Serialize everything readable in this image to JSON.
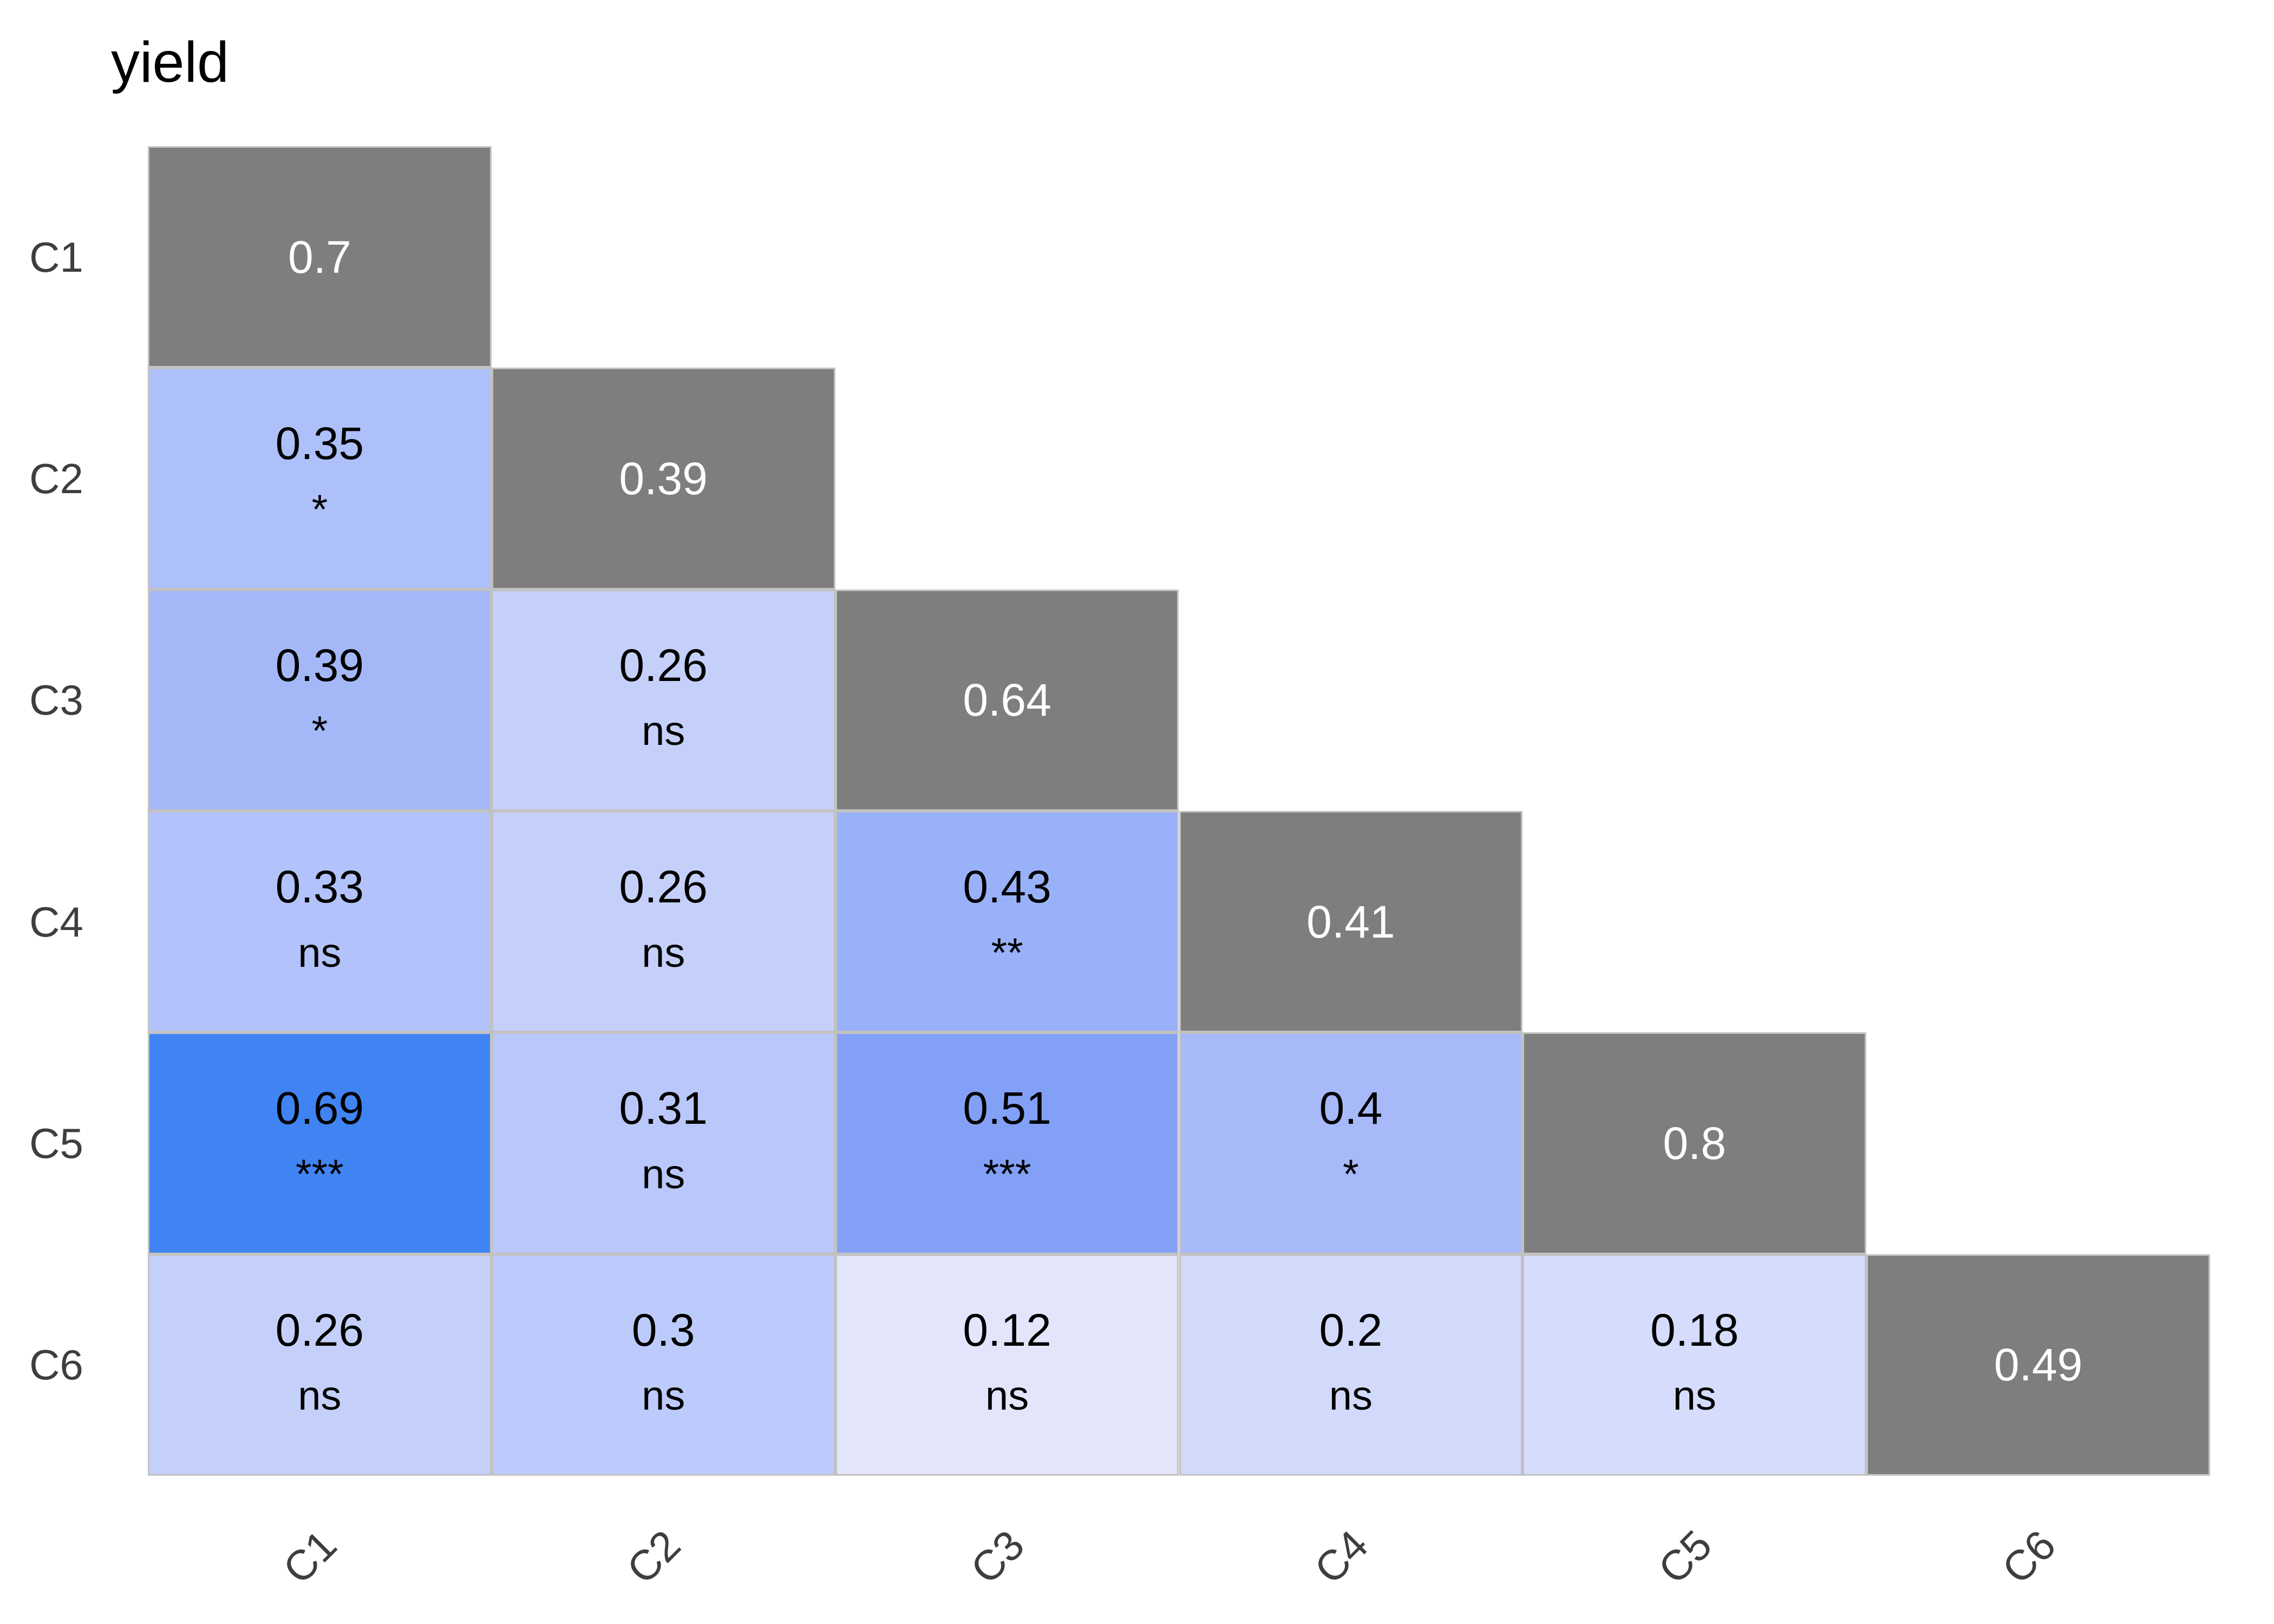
{
  "title": "yield",
  "style": {
    "background": "#ffffff",
    "title_color": "#000000",
    "axis_label_color": "#3e3e3e",
    "grid_line_color": "#c2c2c2",
    "diagonal_cell_color": "#7e7e7e",
    "diagonal_text_color": "#ffffff",
    "cell_text_color": "#000000",
    "max_blue": "#4084f3"
  },
  "chart_data": {
    "type": "heatmap",
    "title": "yield",
    "subtitle": "",
    "rows": [
      "C1",
      "C2",
      "C3",
      "C4",
      "C5",
      "C6"
    ],
    "cols": [
      "C1",
      "C2",
      "C3",
      "C4",
      "C5",
      "C6"
    ],
    "legend_position": "none",
    "grid": "lower-triangle",
    "cells": [
      {
        "row": 0,
        "col": 0,
        "value": 0.7,
        "display": "0.7",
        "sig": null,
        "diagonal": true,
        "bg": "#7e7e7e",
        "fg": "#ffffff"
      },
      {
        "row": 1,
        "col": 0,
        "value": 0.35,
        "display": "0.35",
        "sig": "*",
        "diagonal": false,
        "bg": "#aec0f9",
        "fg": "#000000"
      },
      {
        "row": 1,
        "col": 1,
        "value": 0.39,
        "display": "0.39",
        "sig": null,
        "diagonal": true,
        "bg": "#7e7e7e",
        "fg": "#ffffff"
      },
      {
        "row": 2,
        "col": 0,
        "value": 0.39,
        "display": "0.39",
        "sig": "*",
        "diagonal": false,
        "bg": "#a4b8f8",
        "fg": "#000000"
      },
      {
        "row": 2,
        "col": 1,
        "value": 0.26,
        "display": "0.26",
        "sig": "ns",
        "diagonal": false,
        "bg": "#c5d0fa",
        "fg": "#000000"
      },
      {
        "row": 2,
        "col": 2,
        "value": 0.64,
        "display": "0.64",
        "sig": null,
        "diagonal": true,
        "bg": "#7e7e7e",
        "fg": "#ffffff"
      },
      {
        "row": 3,
        "col": 0,
        "value": 0.33,
        "display": "0.33",
        "sig": "ns",
        "diagonal": false,
        "bg": "#b2c2fa",
        "fg": "#000000"
      },
      {
        "row": 3,
        "col": 1,
        "value": 0.26,
        "display": "0.26",
        "sig": "ns",
        "diagonal": false,
        "bg": "#c5d0fa",
        "fg": "#000000"
      },
      {
        "row": 3,
        "col": 2,
        "value": 0.43,
        "display": "0.43",
        "sig": "**",
        "diagonal": false,
        "bg": "#99b1f9",
        "fg": "#000000"
      },
      {
        "row": 3,
        "col": 3,
        "value": 0.41,
        "display": "0.41",
        "sig": null,
        "diagonal": true,
        "bg": "#7e7e7e",
        "fg": "#ffffff"
      },
      {
        "row": 4,
        "col": 0,
        "value": 0.69,
        "display": "0.69",
        "sig": "***",
        "diagonal": false,
        "bg": "#4084f3",
        "fg": "#000000"
      },
      {
        "row": 4,
        "col": 1,
        "value": 0.31,
        "display": "0.31",
        "sig": "ns",
        "diagonal": false,
        "bg": "#b9c7fa",
        "fg": "#000000"
      },
      {
        "row": 4,
        "col": 2,
        "value": 0.51,
        "display": "0.51",
        "sig": "***",
        "diagonal": false,
        "bg": "#83a0f7",
        "fg": "#000000"
      },
      {
        "row": 4,
        "col": 3,
        "value": 0.4,
        "display": "0.4",
        "sig": "*",
        "diagonal": false,
        "bg": "#a7b9f9",
        "fg": "#000000"
      },
      {
        "row": 4,
        "col": 4,
        "value": 0.8,
        "display": "0.8",
        "sig": null,
        "diagonal": true,
        "bg": "#7e7e7e",
        "fg": "#ffffff"
      },
      {
        "row": 5,
        "col": 0,
        "value": 0.26,
        "display": "0.26",
        "sig": "ns",
        "diagonal": false,
        "bg": "#c5d0fa",
        "fg": "#000000"
      },
      {
        "row": 5,
        "col": 1,
        "value": 0.3,
        "display": "0.3",
        "sig": "ns",
        "diagonal": false,
        "bg": "#bccbfb",
        "fg": "#000000"
      },
      {
        "row": 5,
        "col": 2,
        "value": 0.12,
        "display": "0.12",
        "sig": "ns",
        "diagonal": false,
        "bg": "#e3e6fb",
        "fg": "#000000"
      },
      {
        "row": 5,
        "col": 3,
        "value": 0.2,
        "display": "0.2",
        "sig": "ns",
        "diagonal": false,
        "bg": "#d2dafb",
        "fg": "#000000"
      },
      {
        "row": 5,
        "col": 4,
        "value": 0.18,
        "display": "0.18",
        "sig": "ns",
        "diagonal": false,
        "bg": "#d6ddfc",
        "fg": "#000000"
      },
      {
        "row": 5,
        "col": 5,
        "value": 0.49,
        "display": "0.49",
        "sig": null,
        "diagonal": true,
        "bg": "#7e7e7e",
        "fg": "#ffffff"
      }
    ]
  }
}
